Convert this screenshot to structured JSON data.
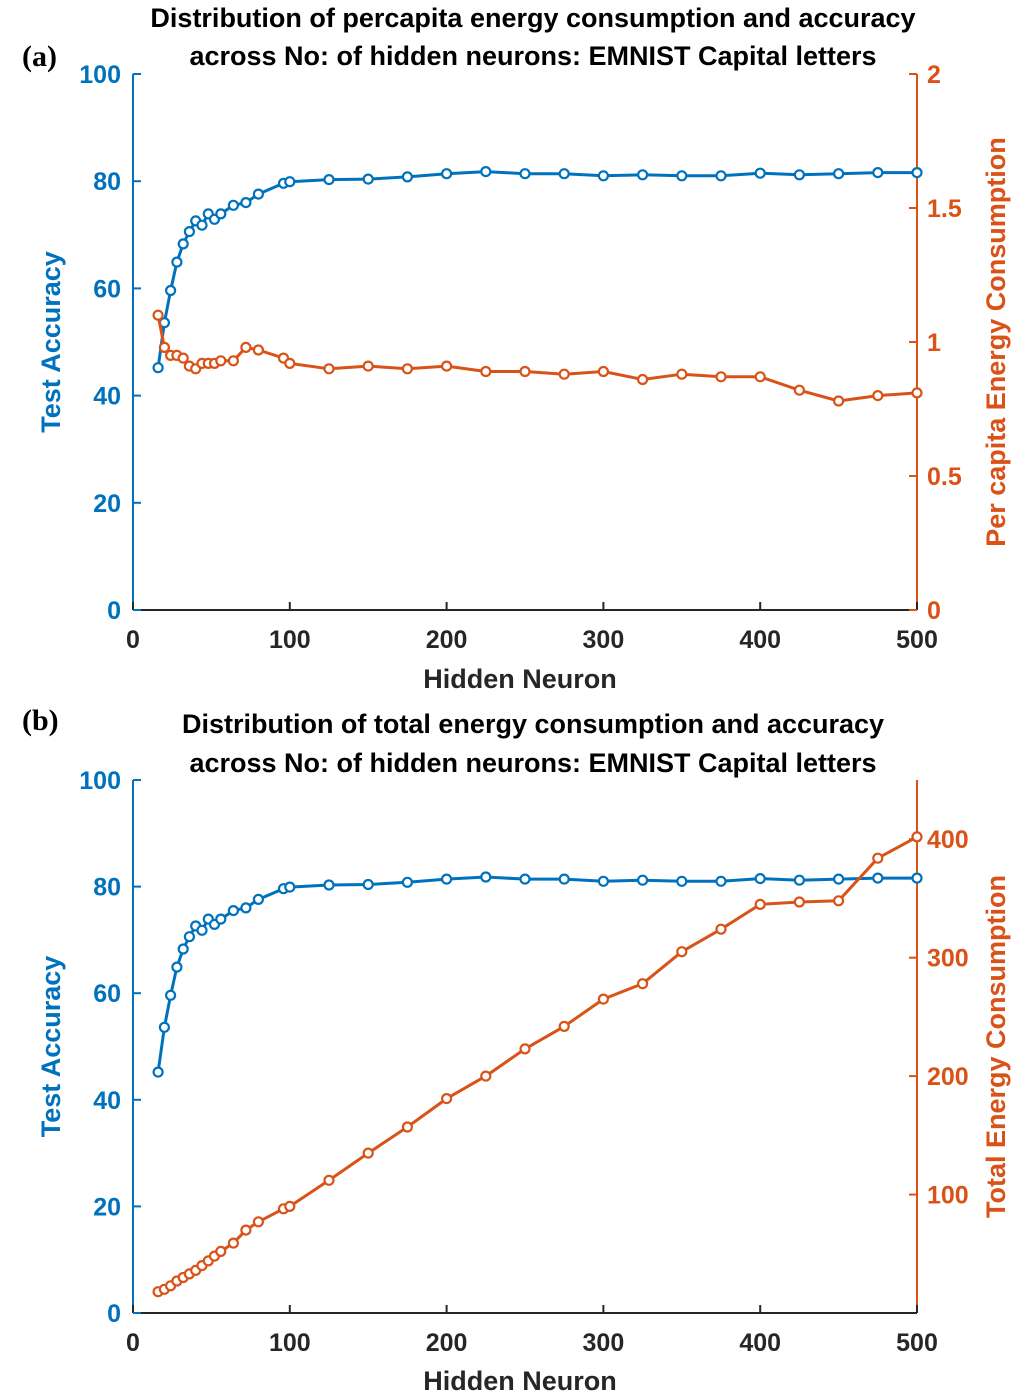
{
  "chart_data": [
    {
      "type": "line",
      "panel_label": "(a)",
      "title": [
        "Distribution of percapita energy consumption and accuracy",
        "across No: of hidden neurons: EMNIST Capital letters"
      ],
      "xlabel": "Hidden Neuron",
      "ylabel_left": "Test Accuracy",
      "ylabel_right": "Per capita Energy Consumption",
      "xlim": [
        0,
        500
      ],
      "ylim_left": [
        0,
        100
      ],
      "ylim_right": [
        0,
        2
      ],
      "xticks": [
        "0",
        "100",
        "200",
        "300",
        "400",
        "500"
      ],
      "yticks_left": [
        "0",
        "20",
        "40",
        "60",
        "80",
        "100"
      ],
      "yticks_right": [
        "0",
        "0.5",
        "1",
        "1.5",
        "2"
      ],
      "x": [
        16,
        20,
        24,
        28,
        32,
        36,
        40,
        44,
        48,
        52,
        56,
        64,
        72,
        80,
        96,
        100,
        125,
        150,
        175,
        200,
        225,
        250,
        275,
        300,
        325,
        350,
        375,
        400,
        425,
        450,
        475,
        500
      ],
      "series": [
        {
          "name": "",
          "axis": "left",
          "color": "#0072BD",
          "values": [
            45.2,
            53.6,
            59.6,
            64.9,
            68.3,
            70.6,
            72.6,
            71.8,
            73.9,
            72.9,
            73.9,
            75.5,
            76.0,
            77.6,
            79.6,
            79.9,
            80.3,
            80.4,
            80.8,
            81.4,
            81.8,
            81.4,
            81.4,
            81.0,
            81.2,
            81.0,
            81.0,
            81.5,
            81.2,
            81.4,
            81.6,
            81.6
          ]
        },
        {
          "name": "",
          "axis": "right",
          "color": "#D95319",
          "values": [
            1.1,
            0.98,
            0.95,
            0.95,
            0.94,
            0.91,
            0.9,
            0.92,
            0.92,
            0.92,
            0.93,
            0.93,
            0.98,
            0.97,
            0.94,
            0.92,
            0.9,
            0.91,
            0.9,
            0.91,
            0.89,
            0.89,
            0.88,
            0.89,
            0.86,
            0.88,
            0.87,
            0.87,
            0.82,
            0.78,
            0.8,
            0.81
          ]
        }
      ]
    },
    {
      "type": "line",
      "panel_label": "(b)",
      "title": [
        "Distribution of total energy consumption and accuracy",
        "across No: of hidden neurons: EMNIST Capital letters"
      ],
      "xlabel": "Hidden Neuron",
      "ylabel_left": "Test Accuracy",
      "ylabel_right": "Total Energy Consumption",
      "xlim": [
        0,
        500
      ],
      "ylim_left": [
        0,
        100
      ],
      "ylim_right": [
        0,
        450
      ],
      "xticks": [
        "0",
        "100",
        "200",
        "300",
        "400",
        "500"
      ],
      "yticks_left": [
        "0",
        "20",
        "40",
        "60",
        "80",
        "100"
      ],
      "yticks_right": [
        "100",
        "200",
        "300",
        "400"
      ],
      "x": [
        16,
        20,
        24,
        28,
        32,
        36,
        40,
        44,
        48,
        52,
        56,
        64,
        72,
        80,
        96,
        100,
        125,
        150,
        175,
        200,
        225,
        250,
        275,
        300,
        325,
        350,
        375,
        400,
        425,
        450,
        475,
        500
      ],
      "series": [
        {
          "name": "",
          "axis": "left",
          "color": "#0072BD",
          "values": [
            45.2,
            53.6,
            59.6,
            64.9,
            68.3,
            70.6,
            72.6,
            71.8,
            73.9,
            72.9,
            73.9,
            75.5,
            76.0,
            77.6,
            79.6,
            79.9,
            80.3,
            80.4,
            80.8,
            81.4,
            81.8,
            81.4,
            81.4,
            81.0,
            81.2,
            81.0,
            81.0,
            81.5,
            81.2,
            81.4,
            81.6,
            81.6
          ]
        },
        {
          "name": "",
          "axis": "right",
          "color": "#D95319",
          "values": [
            18,
            20,
            23,
            27,
            30,
            33,
            36,
            40,
            44,
            48,
            52,
            59,
            70,
            77,
            88,
            90,
            112,
            135,
            157,
            181,
            200,
            223,
            242,
            265,
            278,
            305,
            324,
            345,
            347,
            348,
            384,
            402
          ]
        }
      ]
    }
  ]
}
